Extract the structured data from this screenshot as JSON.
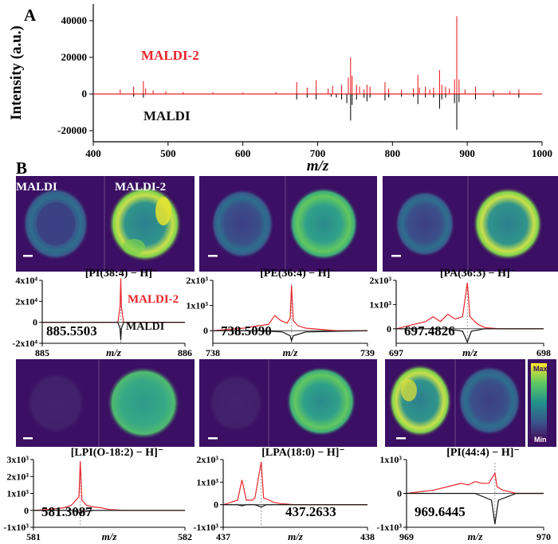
{
  "panel_labels": {
    "a": "A",
    "b": "B"
  },
  "colors": {
    "maldi2": "#e8262b",
    "maldi": "#111111",
    "dark_bg": "#3b0f63",
    "colormap": [
      "#440154",
      "#3b528b",
      "#21908d",
      "#5dc963",
      "#fde725"
    ]
  },
  "image_labels": {
    "left": "MALDI",
    "right": "MALDI-2"
  },
  "colorbar": {
    "max": "Max",
    "min": "Min"
  },
  "chart_data": [
    {
      "id": "A",
      "type": "line",
      "title": "",
      "xlabel": "m/z",
      "ylabel": "Intensity (a.u.)",
      "xlim": [
        400,
        1000
      ],
      "ylim": [
        -25000,
        50000
      ],
      "xticks": [
        "400",
        "500",
        "600",
        "700",
        "800",
        "900",
        "1000"
      ],
      "yticks": [
        "-20000",
        "0",
        "20000",
        "40000"
      ],
      "grid": false,
      "series": [
        {
          "name": "MALDI-2",
          "color": "#e8262b",
          "peaks": [
            [
              436,
              2500
            ],
            [
              454,
              4000
            ],
            [
              467,
              7000
            ],
            [
              470,
              3000
            ],
            [
              480,
              2000
            ],
            [
              497,
              1500
            ],
            [
              520,
              1000
            ],
            [
              560,
              1000
            ],
            [
              600,
              800
            ],
            [
              644,
              1000
            ],
            [
              672,
              6500
            ],
            [
              686,
              3500
            ],
            [
              698,
              7500
            ],
            [
              714,
              3000
            ],
            [
              720,
              4500
            ],
            [
              732,
              5000
            ],
            [
              741,
              9000
            ],
            [
              744,
              20000
            ],
            [
              746,
              10000
            ],
            [
              752,
              5000
            ],
            [
              756,
              4000
            ],
            [
              762,
              2500
            ],
            [
              766,
              5000
            ],
            [
              770,
              4000
            ],
            [
              790,
              6500
            ],
            [
              795,
              3000
            ],
            [
              812,
              2500
            ],
            [
              828,
              3000
            ],
            [
              834,
              10500
            ],
            [
              836,
              3500
            ],
            [
              844,
              4000
            ],
            [
              850,
              2500
            ],
            [
              855,
              3500
            ],
            [
              863,
              13000
            ],
            [
              866,
              5000
            ],
            [
              871,
              4000
            ],
            [
              876,
              3000
            ],
            [
              883,
              8000
            ],
            [
              886,
              42500
            ],
            [
              889,
              8000
            ],
            [
              897,
              2500
            ],
            [
              911,
              4000
            ],
            [
              935,
              2000
            ],
            [
              957,
              1500
            ],
            [
              969,
              2500
            ]
          ]
        },
        {
          "name": "MALDI",
          "color": "#111111",
          "peaks": [
            [
              454,
              1500
            ],
            [
              467,
              2000
            ],
            [
              672,
              3000
            ],
            [
              686,
              2000
            ],
            [
              698,
              3000
            ],
            [
              718,
              1500
            ],
            [
              725,
              2000
            ],
            [
              732,
              3000
            ],
            [
              739,
              5000
            ],
            [
              744,
              14500
            ],
            [
              746,
              6000
            ],
            [
              752,
              3000
            ],
            [
              762,
              2000
            ],
            [
              766,
              4000
            ],
            [
              770,
              2000
            ],
            [
              790,
              3500
            ],
            [
              795,
              2000
            ],
            [
              812,
              1500
            ],
            [
              828,
              1500
            ],
            [
              834,
              5500
            ],
            [
              844,
              2000
            ],
            [
              855,
              2000
            ],
            [
              863,
              8000
            ],
            [
              866,
              3000
            ],
            [
              871,
              2000
            ],
            [
              883,
              5000
            ],
            [
              886,
              19500
            ],
            [
              889,
              4500
            ],
            [
              911,
              3000
            ],
            [
              935,
              1500
            ],
            [
              969,
              2000
            ]
          ]
        }
      ],
      "annotations": [
        "MALDI-2",
        "MALDI"
      ]
    },
    {
      "id": "B1",
      "type": "line",
      "title": "[PI(38:4) − H]⁻",
      "xlabel": "m/z",
      "xlim": [
        885,
        886
      ],
      "xticks": [
        "885",
        "886"
      ],
      "ylim": [
        -2,
        4
      ],
      "y_unit": 10000,
      "yticks": [
        "-2x10⁴",
        "0",
        "2x10⁴",
        "4x10⁴"
      ],
      "mz_label": "885.5503",
      "mz_value": 885.5503,
      "legend": [
        "MALDI-2",
        "MALDI"
      ],
      "series": [
        {
          "name": "MALDI-2",
          "x": [
            885.0,
            885.45,
            885.5,
            885.53,
            885.545,
            885.5503,
            885.555,
            885.57,
            885.6,
            885.65,
            886.0
          ],
          "y": [
            0,
            0,
            0,
            0,
            1.5,
            4.2,
            1.5,
            0,
            0,
            0,
            0
          ]
        },
        {
          "name": "MALDI",
          "x": [
            885.0,
            885.45,
            885.5,
            885.53,
            885.545,
            885.5503,
            885.555,
            885.57,
            885.6,
            885.65,
            886.0
          ],
          "y": [
            0,
            0,
            0,
            0,
            -0.6,
            -1.7,
            -0.6,
            0,
            0,
            0,
            0
          ]
        }
      ]
    },
    {
      "id": "B2",
      "type": "line",
      "title": "[PE(36:4) − H]⁻",
      "xlabel": "m/z",
      "xlim": [
        738,
        739
      ],
      "xticks": [
        "738",
        "739"
      ],
      "ylim": [
        -0.5,
        2
      ],
      "y_unit": 1000,
      "yticks": [
        "0",
        "1x10³",
        "2x10³"
      ],
      "mz_label": "738.5090",
      "mz_value": 738.509,
      "series": [
        {
          "name": "MALDI-2",
          "x": [
            738.0,
            738.1,
            738.2,
            738.3,
            738.36,
            738.4,
            738.44,
            738.48,
            738.5,
            738.509,
            738.52,
            738.55,
            738.6,
            738.7,
            738.8,
            738.9,
            739.0
          ],
          "y": [
            0,
            0.05,
            0.1,
            0.2,
            0.25,
            0.6,
            0.4,
            0.3,
            0.5,
            1.8,
            0.4,
            0.2,
            0.1,
            0.05,
            0,
            0,
            0
          ]
        },
        {
          "name": "MALDI",
          "x": [
            738.0,
            738.3,
            738.45,
            738.5,
            738.509,
            738.52,
            738.6,
            739.0
          ],
          "y": [
            0,
            0,
            -0.05,
            -0.2,
            -0.4,
            -0.2,
            -0.05,
            0
          ]
        }
      ]
    },
    {
      "id": "B3",
      "type": "line",
      "title": "[PA(36:3) − H]⁻",
      "xlabel": "m/z",
      "xlim": [
        697,
        698
      ],
      "xticks": [
        "697",
        "698"
      ],
      "ylim": [
        -0.6,
        2
      ],
      "y_unit": 1000,
      "yticks": [
        "0",
        "1x10³",
        "2x10³"
      ],
      "mz_label": "697.4826",
      "mz_value": 697.4826,
      "series": [
        {
          "name": "MALDI-2",
          "x": [
            697.0,
            697.1,
            697.2,
            697.25,
            697.3,
            697.35,
            697.4,
            697.45,
            697.4826,
            697.5,
            697.55,
            697.6,
            697.7,
            698.0
          ],
          "y": [
            0,
            0.15,
            0.3,
            0.5,
            0.3,
            0.6,
            0.4,
            0.5,
            1.9,
            0.5,
            0.2,
            0.05,
            0,
            0
          ]
        },
        {
          "name": "MALDI",
          "x": [
            697.0,
            697.35,
            697.45,
            697.4826,
            697.51,
            697.6,
            698.0
          ],
          "y": [
            0,
            0,
            -0.1,
            -0.55,
            -0.1,
            0,
            0
          ]
        }
      ]
    },
    {
      "id": "B4",
      "type": "line",
      "title": "[LPI(O-18:2) − H]⁻",
      "xlabel": "m/z",
      "xlim": [
        581,
        582
      ],
      "xticks": [
        "581",
        "582"
      ],
      "ylim": [
        -1,
        3
      ],
      "y_unit": 1000,
      "yticks": [
        "-1x10³",
        "0",
        "1x10³",
        "2x10³",
        "3x10³"
      ],
      "mz_label": "581.3087",
      "mz_value": 581.3087,
      "series": [
        {
          "name": "MALDI-2",
          "x": [
            581.0,
            581.1,
            581.15,
            581.2,
            581.25,
            581.3,
            581.3087,
            581.32,
            581.35,
            581.4,
            581.45,
            581.5,
            581.6,
            582.0
          ],
          "y": [
            0,
            0.05,
            0.1,
            0.15,
            0.3,
            0.8,
            2.9,
            0.6,
            0.3,
            0.2,
            0.15,
            0.05,
            0,
            0
          ]
        },
        {
          "name": "MALDI",
          "x": [
            581.0,
            581.25,
            581.3,
            581.3087,
            581.32,
            581.4,
            582.0
          ],
          "y": [
            0,
            0,
            -0.1,
            -0.3,
            -0.1,
            0,
            0
          ]
        }
      ]
    },
    {
      "id": "B5",
      "type": "line",
      "title": "[LPA(18:0) − H]⁻",
      "xlabel": "m/z",
      "xlim": [
        437,
        438
      ],
      "xticks": [
        "437",
        "438"
      ],
      "ylim": [
        -1,
        2
      ],
      "y_unit": 1000,
      "yticks": [
        "-1x10³",
        "0",
        "1x10³",
        "2x10³"
      ],
      "mz_label": "437.2633",
      "mz_value": 437.2633,
      "series": [
        {
          "name": "MALDI-2",
          "x": [
            437.0,
            437.05,
            437.1,
            437.13,
            437.16,
            437.2,
            437.22,
            437.2633,
            437.28,
            437.32,
            437.35,
            437.4,
            437.5,
            438.0
          ],
          "y": [
            0,
            0.1,
            0.2,
            1.1,
            0.2,
            0.2,
            0.3,
            1.9,
            0.3,
            0.2,
            0.1,
            0.05,
            0,
            0
          ]
        },
        {
          "name": "MALDI",
          "x": [
            437.0,
            437.1,
            437.13,
            437.16,
            437.22,
            437.2633,
            437.3,
            437.4,
            438.0
          ],
          "y": [
            0,
            0,
            -0.05,
            0,
            0,
            -0.1,
            0,
            0,
            0
          ]
        }
      ]
    },
    {
      "id": "B6",
      "type": "line",
      "title": "[PI(44:4) − H]⁻",
      "xlabel": "m/z",
      "xlim": [
        969,
        970
      ],
      "xticks": [
        "969",
        "970"
      ],
      "ylim": [
        -1,
        1
      ],
      "y_unit": 1000,
      "yticks": [
        "-1x10³",
        "0",
        "1x10³"
      ],
      "mz_label": "969.6445",
      "mz_value": 969.6445,
      "series": [
        {
          "name": "MALDI-2",
          "x": [
            969.0,
            969.1,
            969.2,
            969.3,
            969.4,
            969.45,
            969.5,
            969.55,
            969.6,
            969.6445,
            969.66,
            969.7,
            969.8,
            970.0
          ],
          "y": [
            0,
            0.05,
            0.1,
            0.2,
            0.3,
            0.25,
            0.35,
            0.3,
            0.3,
            0.6,
            0.2,
            0.1,
            0,
            0
          ]
        },
        {
          "name": "MALDI",
          "x": [
            969.0,
            969.5,
            969.62,
            969.6445,
            969.67,
            969.8,
            970.0
          ],
          "y": [
            0,
            0,
            -0.2,
            -0.9,
            -0.2,
            0,
            0
          ]
        }
      ]
    }
  ]
}
